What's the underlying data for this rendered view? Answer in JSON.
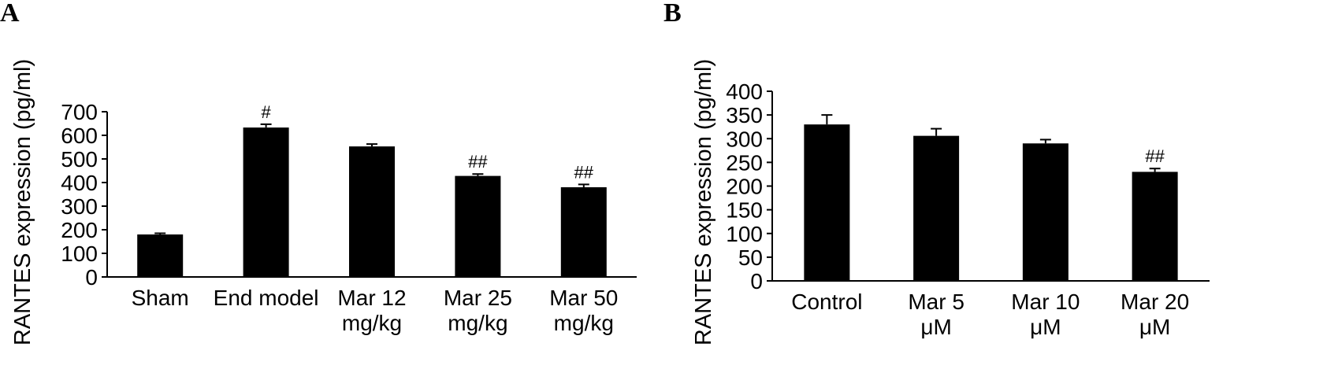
{
  "chart_data": [
    {
      "type": "bar",
      "panel": "A",
      "ylabel": "RANTES expression (pg/ml)",
      "xlabel": "",
      "ylim": [
        0,
        700
      ],
      "yticks": [
        "0",
        "100",
        "200",
        "300",
        "400",
        "500",
        "600",
        "700"
      ],
      "categories": [
        [
          "Sham"
        ],
        [
          "End model"
        ],
        [
          "Mar 12",
          "mg/kg"
        ],
        [
          "Mar 25",
          "mg/kg"
        ],
        [
          "Mar 50",
          "mg/kg"
        ]
      ],
      "values": [
        180,
        633,
        553,
        428,
        380
      ],
      "errors": [
        5,
        14,
        10,
        8,
        12
      ],
      "annotations": [
        "",
        "#",
        "",
        "##",
        "##"
      ],
      "bar_color": "#000000"
    },
    {
      "type": "bar",
      "panel": "B",
      "ylabel": "RANTES expression (pg/ml)",
      "xlabel": "",
      "ylim": [
        0,
        400
      ],
      "yticks": [
        "0",
        "50",
        "100",
        "150",
        "200",
        "250",
        "300",
        "350",
        "400"
      ],
      "categories": [
        [
          "Control"
        ],
        [
          "Mar 5",
          "μM"
        ],
        [
          "Mar 10",
          "μM"
        ],
        [
          "Mar 20",
          "μM"
        ]
      ],
      "values": [
        330,
        306,
        290,
        230
      ],
      "errors": [
        20,
        15,
        8,
        7
      ],
      "annotations": [
        "",
        "",
        "",
        "##"
      ],
      "bar_color": "#000000"
    }
  ]
}
